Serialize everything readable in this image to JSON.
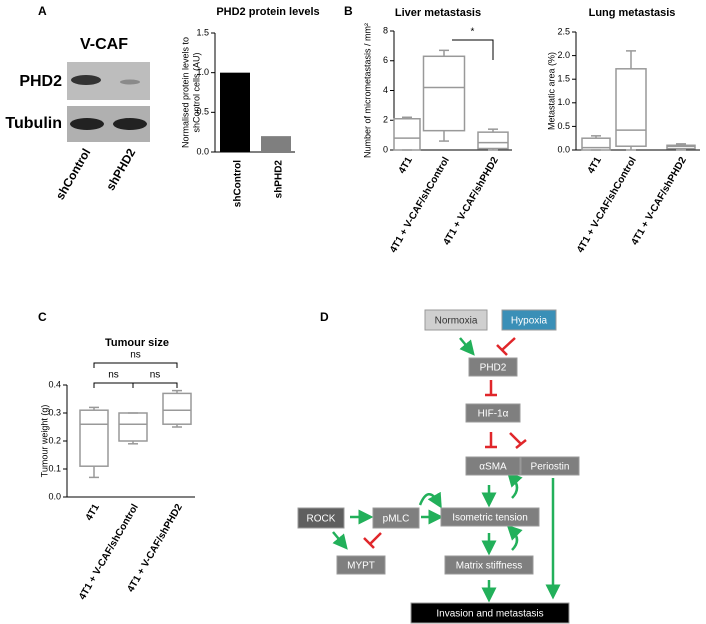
{
  "panels": [
    "A",
    "B",
    "C",
    "D"
  ],
  "blot": {
    "title": "V-CAF",
    "rows": [
      "PHD2",
      "Tubulin"
    ],
    "lanes": [
      "shControl",
      "shPHD2"
    ]
  },
  "chart_data": [
    {
      "type": "bar",
      "title": "PHD2 protein levels",
      "ylabel": [
        "Normalised protein levels to",
        "shControl cells (AU)"
      ],
      "categories": [
        "shControl",
        "shPHD2"
      ],
      "values": [
        1.0,
        0.2
      ],
      "colors": [
        "#000000",
        "#7f7f7f"
      ],
      "ylim": [
        0,
        1.5
      ],
      "yticks": [
        {
          "value": 0,
          "label": "0.0"
        },
        {
          "value": 0.5,
          "label": "0.5"
        },
        {
          "value": 1,
          "label": "1.0"
        },
        {
          "value": 1.5,
          "label": "1.5"
        }
      ]
    },
    {
      "type": "box",
      "title": "Liver metastasis",
      "ylabel": "Number of micrometastasis / mm²",
      "color": "#999999",
      "categories": [
        "4T1",
        "4T1 + V-CAF/shControl",
        "4T1 + V-CAF/shPHD2"
      ],
      "boxes": [
        {
          "min": 0,
          "q1": 0,
          "median": 0.8,
          "q3": 2.1,
          "max": 2.2
        },
        {
          "min": 0.6,
          "q1": 1.3,
          "median": 4.2,
          "q3": 6.3,
          "max": 6.7
        },
        {
          "min": 0,
          "q1": 0.1,
          "median": 0.5,
          "q3": 1.2,
          "max": 1.4
        }
      ],
      "ylim": [
        0,
        8
      ],
      "yticks": [
        0,
        2,
        4,
        6,
        8
      ],
      "annotations": [
        "*"
      ]
    },
    {
      "type": "box",
      "title": "Lung metastasis",
      "ylabel": "Metastatic area (%)",
      "color": "#999999",
      "categories": [
        "4T1",
        "4T1 + V-CAF/shControl",
        "4T1 + V-CAF/shPHD2"
      ],
      "boxes": [
        {
          "min": 0,
          "q1": 0,
          "median": 0.05,
          "q3": 0.25,
          "max": 0.3
        },
        {
          "min": 0,
          "q1": 0.08,
          "median": 0.42,
          "q3": 1.72,
          "max": 2.1
        },
        {
          "min": 0,
          "q1": 0.03,
          "median": 0.08,
          "q3": 0.1,
          "max": 0.13
        }
      ],
      "ylim": [
        0,
        2.5
      ],
      "yticks": [
        {
          "value": 0,
          "label": "0.0"
        },
        {
          "value": 0.5,
          "label": "0.5"
        },
        {
          "value": 1,
          "label": "1.0"
        },
        {
          "value": 1.5,
          "label": "1.5"
        },
        {
          "value": 2,
          "label": "2.0"
        },
        {
          "value": 2.5,
          "label": "2.5"
        }
      ]
    },
    {
      "type": "box",
      "title": "Tumour size",
      "ylabel": "Tumour weight (g)",
      "color": "#999999",
      "categories": [
        "4T1",
        "4T1 + V-CAF/shControl",
        "4T1 + V-CAF/shPHD2"
      ],
      "boxes": [
        {
          "min": 0.07,
          "q1": 0.11,
          "median": 0.26,
          "q3": 0.31,
          "max": 0.32
        },
        {
          "min": 0.19,
          "q1": 0.2,
          "median": 0.26,
          "q3": 0.3,
          "max": 0.3
        },
        {
          "min": 0.25,
          "q1": 0.26,
          "median": 0.31,
          "q3": 0.37,
          "max": 0.38
        }
      ],
      "ylim": [
        0,
        0.4
      ],
      "yticks": [
        {
          "value": 0,
          "label": "0.0"
        },
        {
          "value": 0.1,
          "label": "0.1"
        },
        {
          "value": 0.2,
          "label": "0.2"
        },
        {
          "value": 0.3,
          "label": "0.3"
        },
        {
          "value": 0.4,
          "label": "0.4"
        }
      ],
      "annotations": [
        "ns",
        "ns",
        "ns"
      ]
    }
  ],
  "diagram": {
    "nodes": [
      "Normoxia",
      "Hypoxia",
      "PHD2",
      "HIF-1α",
      "αSMA",
      "Periostin",
      "ROCK",
      "pMLC",
      "Isometric tension",
      "MYPT",
      "Matrix stiffness",
      "Invasion and metastasis"
    ]
  }
}
